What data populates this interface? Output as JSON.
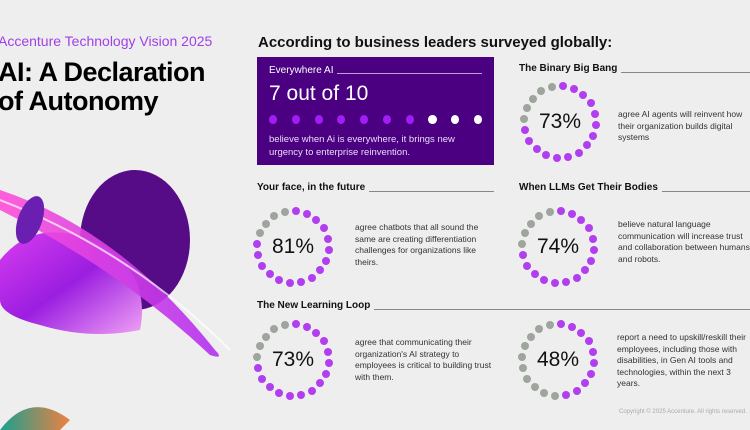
{
  "eyebrow": "Accenture Technology Vision 2025",
  "title_line1": "AI: A Declaration",
  "title_line2": "of Autonomy",
  "headline": "According to business leaders surveyed globally:",
  "colors": {
    "purple_dot": "#b13ff0",
    "gray_dot": "#9ea59c",
    "box_bg": "#4b0082",
    "box_dot_on": "#a21cf5",
    "box_dot_off": "#ffffff"
  },
  "featured": {
    "title": "Everywhere AI",
    "value": "7 out of 10",
    "filled": 7,
    "total": 10,
    "description": "believe when Ai is everywhere, it brings new urgency to enterprise reinvention."
  },
  "stats": [
    {
      "title": "The Binary Big Bang",
      "percent": 73,
      "label": "73%",
      "description": "agree AI agents will reinvent how their organization builds digital systems"
    },
    {
      "title": "Your face, in the future",
      "percent": 81,
      "label": "81%",
      "description": "agree chatbots that all sound the same are creating differentiation challenges for organizations like theirs."
    },
    {
      "title": "When LLMs Get Their Bodies",
      "percent": 74,
      "label": "74%",
      "description": "believe natural language communication will increase trust and collaboration between humans and robots."
    },
    {
      "title": "The New Learning Loop",
      "percent": 73,
      "label": "73%",
      "description": "agree that communicating their organization's AI strategy to employees is critical to building trust with them."
    },
    {
      "title": "",
      "percent": 48,
      "label": "48%",
      "description": "report a need to upskill/reskill their employees, including those with disabilities, in Gen AI tools and technologies, within the next 3 years."
    }
  ],
  "copyright": "Copyright © 2025 Accenture. All rights reserved."
}
